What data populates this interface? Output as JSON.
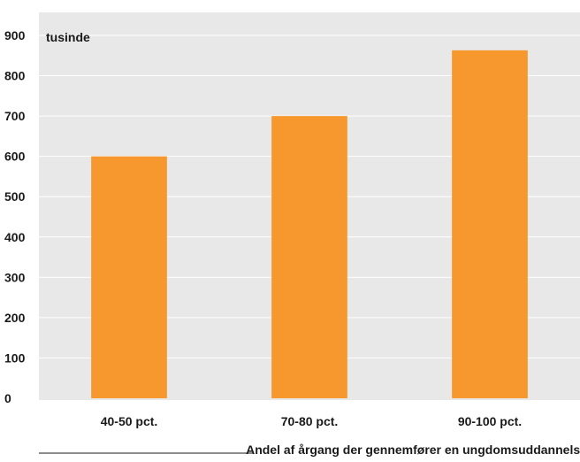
{
  "chart_data": {
    "type": "bar",
    "unit_label": "tusinde",
    "categories": [
      "40-50 pct.",
      "70-80 pct.",
      "90-100 pct."
    ],
    "values": [
      600,
      700,
      863
    ],
    "xlabel": "Andel af årgang der gennemfører en ungdomsuddannelse",
    "ylabel": "",
    "ylim": [
      0,
      900
    ],
    "yticks": [
      0,
      100,
      200,
      300,
      400,
      500,
      600,
      700,
      800,
      900
    ],
    "grid": true,
    "colors": {
      "plot_background": "#e8e8e8",
      "bar": "#f7982e",
      "gridline": "#ffffff",
      "text": "#1a1a1a"
    }
  }
}
